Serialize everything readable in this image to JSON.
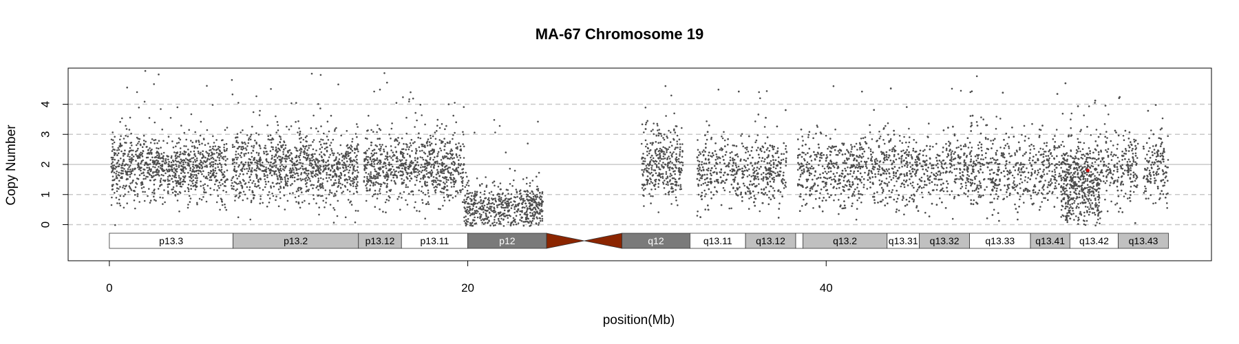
{
  "chart_data": {
    "type": "scatter",
    "title": "MA-67  Chromosome 19",
    "xlabel": "position(Mb)",
    "ylabel": "Copy Number",
    "xlim": [
      -2.3,
      61.5
    ],
    "ylim": [
      -1.2,
      5.2
    ],
    "x_ticks": [
      0,
      20,
      40
    ],
    "y_ticks": [
      0,
      1,
      2,
      3,
      4
    ],
    "dashed_gridlines_y": [
      0,
      1,
      3,
      4
    ],
    "solid_gridline_y": 2,
    "point_color": "#4d4d4d",
    "highlight_color": "#cc0000",
    "segments": [
      {
        "start": 0.1,
        "end": 19.8,
        "mean": 1.9,
        "sd": 0.55
      },
      {
        "start": 19.8,
        "end": 24.2,
        "mean": 0.5,
        "sd": 0.45
      },
      {
        "start": 29.7,
        "end": 32.0,
        "mean": 2.0,
        "sd": 0.6
      },
      {
        "start": 32.8,
        "end": 59.1,
        "mean": 1.8,
        "sd": 0.6
      },
      {
        "start": 53.1,
        "end": 55.3,
        "mean": 1.0,
        "sd": 0.6
      }
    ],
    "gaps": [
      [
        6.6,
        6.8
      ],
      [
        13.9,
        14.2
      ],
      [
        37.8,
        38.4
      ],
      [
        57.4,
        57.7
      ]
    ],
    "highlight_point": {
      "x": 54.6,
      "y": 1.8
    },
    "ideogram": {
      "bands": [
        {
          "name": "p13.3",
          "start": 0.0,
          "end": 6.9,
          "fill": "#ffffff",
          "text": "#000000"
        },
        {
          "name": "p13.2",
          "start": 6.9,
          "end": 13.9,
          "fill": "#c0c0c0",
          "text": "#000000"
        },
        {
          "name": "p13.12",
          "start": 13.9,
          "end": 16.3,
          "fill": "#c0c0c0",
          "text": "#000000"
        },
        {
          "name": "p13.11",
          "start": 16.3,
          "end": 20.0,
          "fill": "#ffffff",
          "text": "#000000"
        },
        {
          "name": "p12",
          "start": 20.0,
          "end": 24.4,
          "fill": "#7a7a7a",
          "text": "#ffffff"
        },
        {
          "name": "q12",
          "start": 28.6,
          "end": 32.4,
          "fill": "#7a7a7a",
          "text": "#ffffff"
        },
        {
          "name": "q13.11",
          "start": 32.4,
          "end": 35.5,
          "fill": "#ffffff",
          "text": "#000000"
        },
        {
          "name": "q13.12",
          "start": 35.5,
          "end": 38.3,
          "fill": "#c0c0c0",
          "text": "#000000"
        },
        {
          "name": "",
          "start": 38.3,
          "end": 38.7,
          "fill": "#ffffff",
          "text": "#000000"
        },
        {
          "name": "q13.2",
          "start": 38.7,
          "end": 43.4,
          "fill": "#c0c0c0",
          "text": "#000000"
        },
        {
          "name": "q13.31",
          "start": 43.4,
          "end": 45.2,
          "fill": "#ffffff",
          "text": "#000000"
        },
        {
          "name": "q13.32",
          "start": 45.2,
          "end": 48.0,
          "fill": "#c0c0c0",
          "text": "#000000"
        },
        {
          "name": "q13.33",
          "start": 48.0,
          "end": 51.4,
          "fill": "#ffffff",
          "text": "#000000"
        },
        {
          "name": "q13.41",
          "start": 51.4,
          "end": 53.6,
          "fill": "#c0c0c0",
          "text": "#000000"
        },
        {
          "name": "q13.42",
          "start": 53.6,
          "end": 56.3,
          "fill": "#ffffff",
          "text": "#000000"
        },
        {
          "name": "q13.43",
          "start": 56.3,
          "end": 59.1,
          "fill": "#c0c0c0",
          "text": "#000000"
        }
      ],
      "centromere": {
        "start": 24.4,
        "end": 28.6,
        "fill": "#8b2500"
      }
    }
  }
}
